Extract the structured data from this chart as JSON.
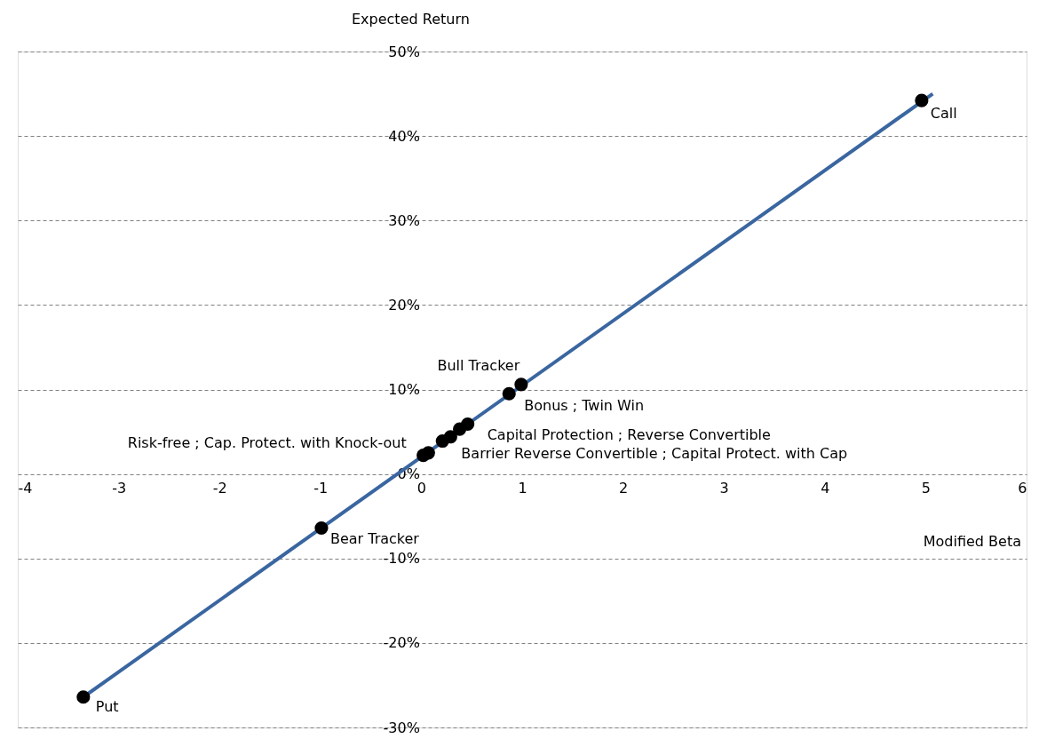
{
  "chart_data": {
    "type": "scatter",
    "xlabel": "Modified Beta",
    "ylabel": "Expected Return",
    "xlim": [
      -4,
      6
    ],
    "xticks": [
      -4,
      -3,
      -2,
      -1,
      0,
      1,
      2,
      3,
      4,
      5,
      6
    ],
    "ylim": [
      -30,
      50
    ],
    "yticks": [
      {
        "value": -30,
        "label": "-30%"
      },
      {
        "value": -20,
        "label": "-20%"
      },
      {
        "value": -10,
        "label": "-10%"
      },
      {
        "value": 0,
        "label": "0%"
      },
      {
        "value": 10,
        "label": "10%"
      },
      {
        "value": 20,
        "label": "20%"
      },
      {
        "value": 30,
        "label": "30%"
      },
      {
        "value": 40,
        "label": "40%"
      },
      {
        "value": 50,
        "label": "50%"
      }
    ],
    "grid": "y",
    "series": [
      {
        "type": "line",
        "color": "#3a66a0",
        "x": [
          -3.35,
          5.07
        ],
        "values": [
          -26.4,
          45.0
        ],
        "marker": "none",
        "line_style": "solid"
      },
      {
        "color": "#000000",
        "marker": "circle",
        "x": [
          -3.35,
          -0.99,
          0.02,
          0.07,
          0.21,
          0.29,
          0.38,
          0.46,
          0.87,
          0.99,
          4.96
        ],
        "values": [
          -26.4,
          -6.4,
          2.2,
          2.5,
          3.9,
          4.4,
          5.3,
          5.9,
          9.5,
          10.6,
          44.2
        ]
      }
    ],
    "annotations": [
      {
        "text": "Bull Tracker",
        "x": 0.99,
        "y": 10.6
      },
      {
        "text": "Bonus ; Twin Win",
        "x": 0.87,
        "y": 9.5
      },
      {
        "text": "Capital Protection ; Reverse Convertible",
        "x": 0.46,
        "y": 5.9
      },
      {
        "text": "Barrier Reverse Convertible ; Capital Protect. with Cap",
        "x": 0.29,
        "y": 4.4
      },
      {
        "text": "Risk-free ; Cap. Protect. with Knock-out",
        "x": 0.02,
        "y": 2.2
      },
      {
        "text": "Bear Tracker",
        "x": -0.99,
        "y": -6.4
      },
      {
        "text": "Put",
        "x": -3.35,
        "y": -26.4
      },
      {
        "text": "Call",
        "x": 4.96,
        "y": 44.2
      }
    ]
  }
}
